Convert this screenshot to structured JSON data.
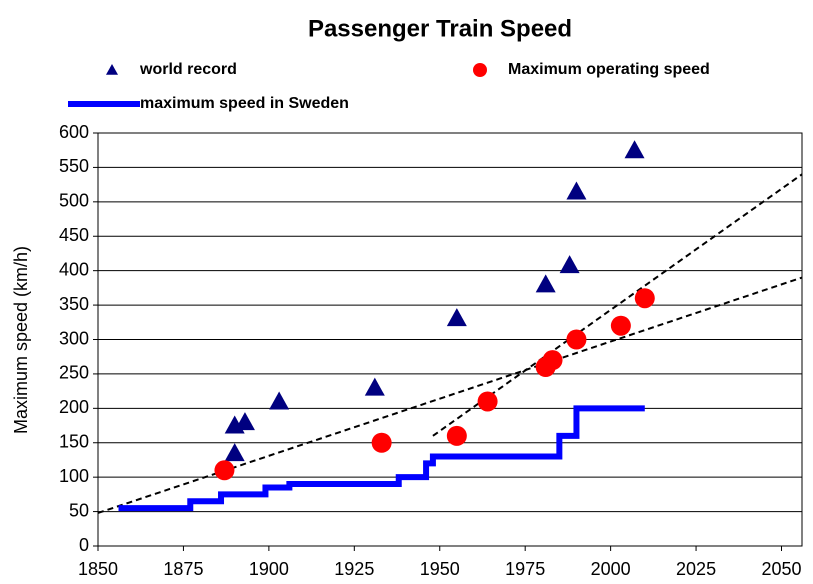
{
  "chart_data": {
    "type": "scatter",
    "title": "Passenger Train Speed",
    "y_label": "Maximum speed (km/h)",
    "xlim": [
      1850,
      2056
    ],
    "xticks": [
      1850,
      1875,
      1900,
      1925,
      1950,
      1975,
      2000,
      2025,
      2050
    ],
    "ylim": [
      0,
      600
    ],
    "yticks": [
      0,
      50,
      100,
      150,
      200,
      250,
      300,
      350,
      400,
      450,
      500,
      550,
      600
    ],
    "grid": true,
    "series": [
      {
        "name": "world record",
        "color": "#000080",
        "marker": "triangle",
        "x": [
          1890,
          1890,
          1893,
          1903,
          1931,
          1955,
          1981,
          1988,
          1990,
          2007
        ],
        "values": [
          135,
          175,
          180,
          210,
          230,
          331,
          380,
          408,
          515,
          575
        ]
      },
      {
        "name": "Maximum operating speed",
        "color": "#ff0000",
        "marker": "circle",
        "x": [
          1887,
          1933,
          1955,
          1964,
          1981,
          1983,
          1990,
          2003,
          2010
        ],
        "values": [
          110,
          150,
          160,
          210,
          260,
          270,
          300,
          320,
          360
        ]
      },
      {
        "name": "maximum speed in Sweden",
        "color": "#0000ff",
        "marker": "line",
        "x": [
          1856,
          1877,
          1877,
          1886,
          1886,
          1899,
          1899,
          1906,
          1906,
          1938,
          1938,
          1946,
          1946,
          1948,
          1948,
          1985,
          1985,
          1990,
          1990,
          2010
        ],
        "values": [
          55,
          55,
          65,
          65,
          75,
          75,
          85,
          85,
          90,
          90,
          100,
          100,
          120,
          120,
          130,
          130,
          160,
          160,
          200,
          200
        ]
      }
    ],
    "trendlines": [
      {
        "x": [
          1850,
          2056
        ],
        "values": [
          48,
          390
        ]
      },
      {
        "x": [
          1948,
          2056
        ],
        "values": [
          160,
          540
        ]
      }
    ]
  }
}
